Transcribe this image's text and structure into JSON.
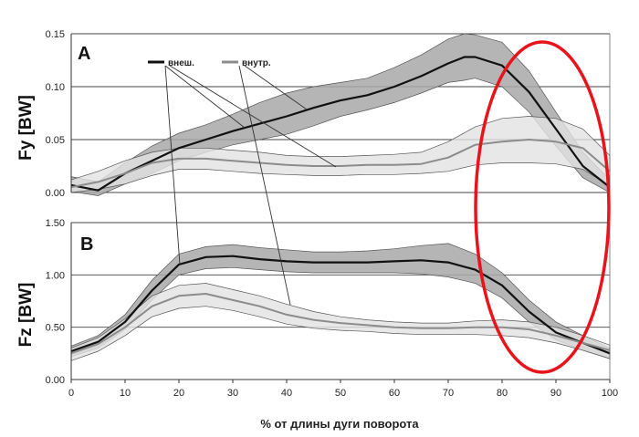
{
  "chart_data": [
    {
      "panel": "A",
      "type": "line",
      "ylabel": "Fy [BW]",
      "xlabel": "% от длины дуги поворота",
      "xlim": [
        0,
        100
      ],
      "ylim": [
        0,
        0.15
      ],
      "yticks": [
        "0.00",
        "0.05",
        "0.10",
        "0.15"
      ],
      "grid": "horizontal",
      "legend_position": "top-left",
      "series": [
        {
          "name": "внеш.",
          "color": "#111111",
          "band_color": "#a8a8a8",
          "x": [
            0,
            5,
            10,
            15,
            20,
            25,
            30,
            35,
            40,
            45,
            50,
            55,
            60,
            65,
            70,
            73,
            75,
            80,
            85,
            90,
            95,
            100
          ],
          "mean": [
            0.007,
            0.002,
            0.018,
            0.03,
            0.042,
            0.05,
            0.058,
            0.065,
            0.072,
            0.08,
            0.087,
            0.092,
            0.1,
            0.11,
            0.122,
            0.128,
            0.128,
            0.12,
            0.095,
            0.06,
            0.025,
            0.005
          ],
          "upper": [
            0.015,
            0.01,
            0.028,
            0.044,
            0.056,
            0.064,
            0.074,
            0.085,
            0.094,
            0.1,
            0.104,
            0.108,
            0.118,
            0.13,
            0.145,
            0.15,
            0.149,
            0.142,
            0.115,
            0.076,
            0.038,
            0.012
          ],
          "lower": [
            0.001,
            -0.003,
            0.008,
            0.018,
            0.03,
            0.038,
            0.045,
            0.05,
            0.055,
            0.063,
            0.072,
            0.078,
            0.085,
            0.094,
            0.104,
            0.106,
            0.108,
            0.1,
            0.076,
            0.044,
            0.014,
            0.0
          ]
        },
        {
          "name": "внутр.",
          "color": "#8c8c8c",
          "band_color": "#e2e2e2",
          "x": [
            0,
            5,
            10,
            15,
            20,
            25,
            30,
            35,
            40,
            45,
            50,
            55,
            60,
            65,
            70,
            75,
            80,
            85,
            90,
            95,
            100
          ],
          "mean": [
            0.005,
            0.01,
            0.018,
            0.028,
            0.032,
            0.032,
            0.03,
            0.028,
            0.026,
            0.025,
            0.025,
            0.026,
            0.026,
            0.027,
            0.033,
            0.045,
            0.048,
            0.05,
            0.048,
            0.042,
            0.02
          ],
          "upper": [
            0.012,
            0.02,
            0.03,
            0.038,
            0.042,
            0.042,
            0.04,
            0.038,
            0.035,
            0.034,
            0.034,
            0.035,
            0.036,
            0.038,
            0.048,
            0.062,
            0.07,
            0.072,
            0.07,
            0.06,
            0.035
          ],
          "lower": [
            0.0,
            0.003,
            0.008,
            0.016,
            0.022,
            0.022,
            0.02,
            0.018,
            0.017,
            0.016,
            0.016,
            0.017,
            0.017,
            0.018,
            0.02,
            0.026,
            0.028,
            0.028,
            0.027,
            0.022,
            0.006
          ]
        }
      ]
    },
    {
      "panel": "B",
      "type": "line",
      "ylabel": "Fz [BW]",
      "xlabel": "% от длины дуги поворота",
      "xlim": [
        0,
        100
      ],
      "ylim": [
        0,
        1.5
      ],
      "yticks": [
        "0.00",
        "0.50",
        "1.00",
        "1.50"
      ],
      "xticks": [
        "0",
        "10",
        "20",
        "30",
        "40",
        "50",
        "60",
        "70",
        "80",
        "90",
        "100"
      ],
      "grid": "horizontal",
      "series": [
        {
          "name": "внеш.",
          "color": "#111111",
          "band_color": "#a8a8a8",
          "x": [
            0,
            5,
            10,
            15,
            20,
            25,
            30,
            35,
            40,
            45,
            50,
            55,
            60,
            65,
            70,
            75,
            80,
            85,
            90,
            95,
            100
          ],
          "mean": [
            0.27,
            0.36,
            0.55,
            0.85,
            1.1,
            1.17,
            1.18,
            1.15,
            1.13,
            1.12,
            1.12,
            1.12,
            1.13,
            1.14,
            1.12,
            1.05,
            0.9,
            0.65,
            0.45,
            0.35,
            0.25
          ],
          "upper": [
            0.32,
            0.42,
            0.62,
            0.95,
            1.2,
            1.27,
            1.29,
            1.26,
            1.24,
            1.22,
            1.22,
            1.23,
            1.25,
            1.28,
            1.3,
            1.2,
            1.02,
            0.76,
            0.55,
            0.42,
            0.3
          ],
          "lower": [
            0.22,
            0.3,
            0.48,
            0.76,
            1.0,
            1.06,
            1.07,
            1.05,
            1.03,
            1.02,
            1.02,
            1.02,
            1.02,
            1.01,
            0.98,
            0.92,
            0.78,
            0.55,
            0.38,
            0.28,
            0.2
          ]
        },
        {
          "name": "внутр.",
          "color": "#8c8c8c",
          "band_color": "#e2e2e2",
          "x": [
            0,
            5,
            10,
            15,
            20,
            25,
            30,
            35,
            40,
            45,
            50,
            55,
            60,
            65,
            70,
            75,
            80,
            85,
            90,
            95,
            100
          ],
          "mean": [
            0.25,
            0.34,
            0.5,
            0.7,
            0.8,
            0.82,
            0.76,
            0.7,
            0.62,
            0.57,
            0.54,
            0.52,
            0.5,
            0.49,
            0.49,
            0.5,
            0.5,
            0.48,
            0.42,
            0.35,
            0.28
          ],
          "upper": [
            0.3,
            0.4,
            0.58,
            0.8,
            0.9,
            0.92,
            0.86,
            0.8,
            0.72,
            0.65,
            0.6,
            0.57,
            0.55,
            0.54,
            0.54,
            0.56,
            0.57,
            0.55,
            0.5,
            0.42,
            0.33
          ],
          "lower": [
            0.18,
            0.27,
            0.42,
            0.6,
            0.68,
            0.7,
            0.66,
            0.6,
            0.53,
            0.49,
            0.47,
            0.46,
            0.44,
            0.43,
            0.43,
            0.43,
            0.42,
            0.4,
            0.35,
            0.28,
            0.2
          ]
        }
      ]
    }
  ],
  "panels": {
    "a_letter": "A",
    "b_letter": "B",
    "a_ylabel": "Fy [BW]",
    "b_ylabel": "Fz [BW]",
    "xlabel": "% от длины дуги поворота",
    "legend_outer": "внеш.",
    "legend_inner": "внутр."
  },
  "annotation": {
    "shape": "ellipse",
    "color": "#e8141b",
    "x_range": [
      75,
      100
    ]
  }
}
